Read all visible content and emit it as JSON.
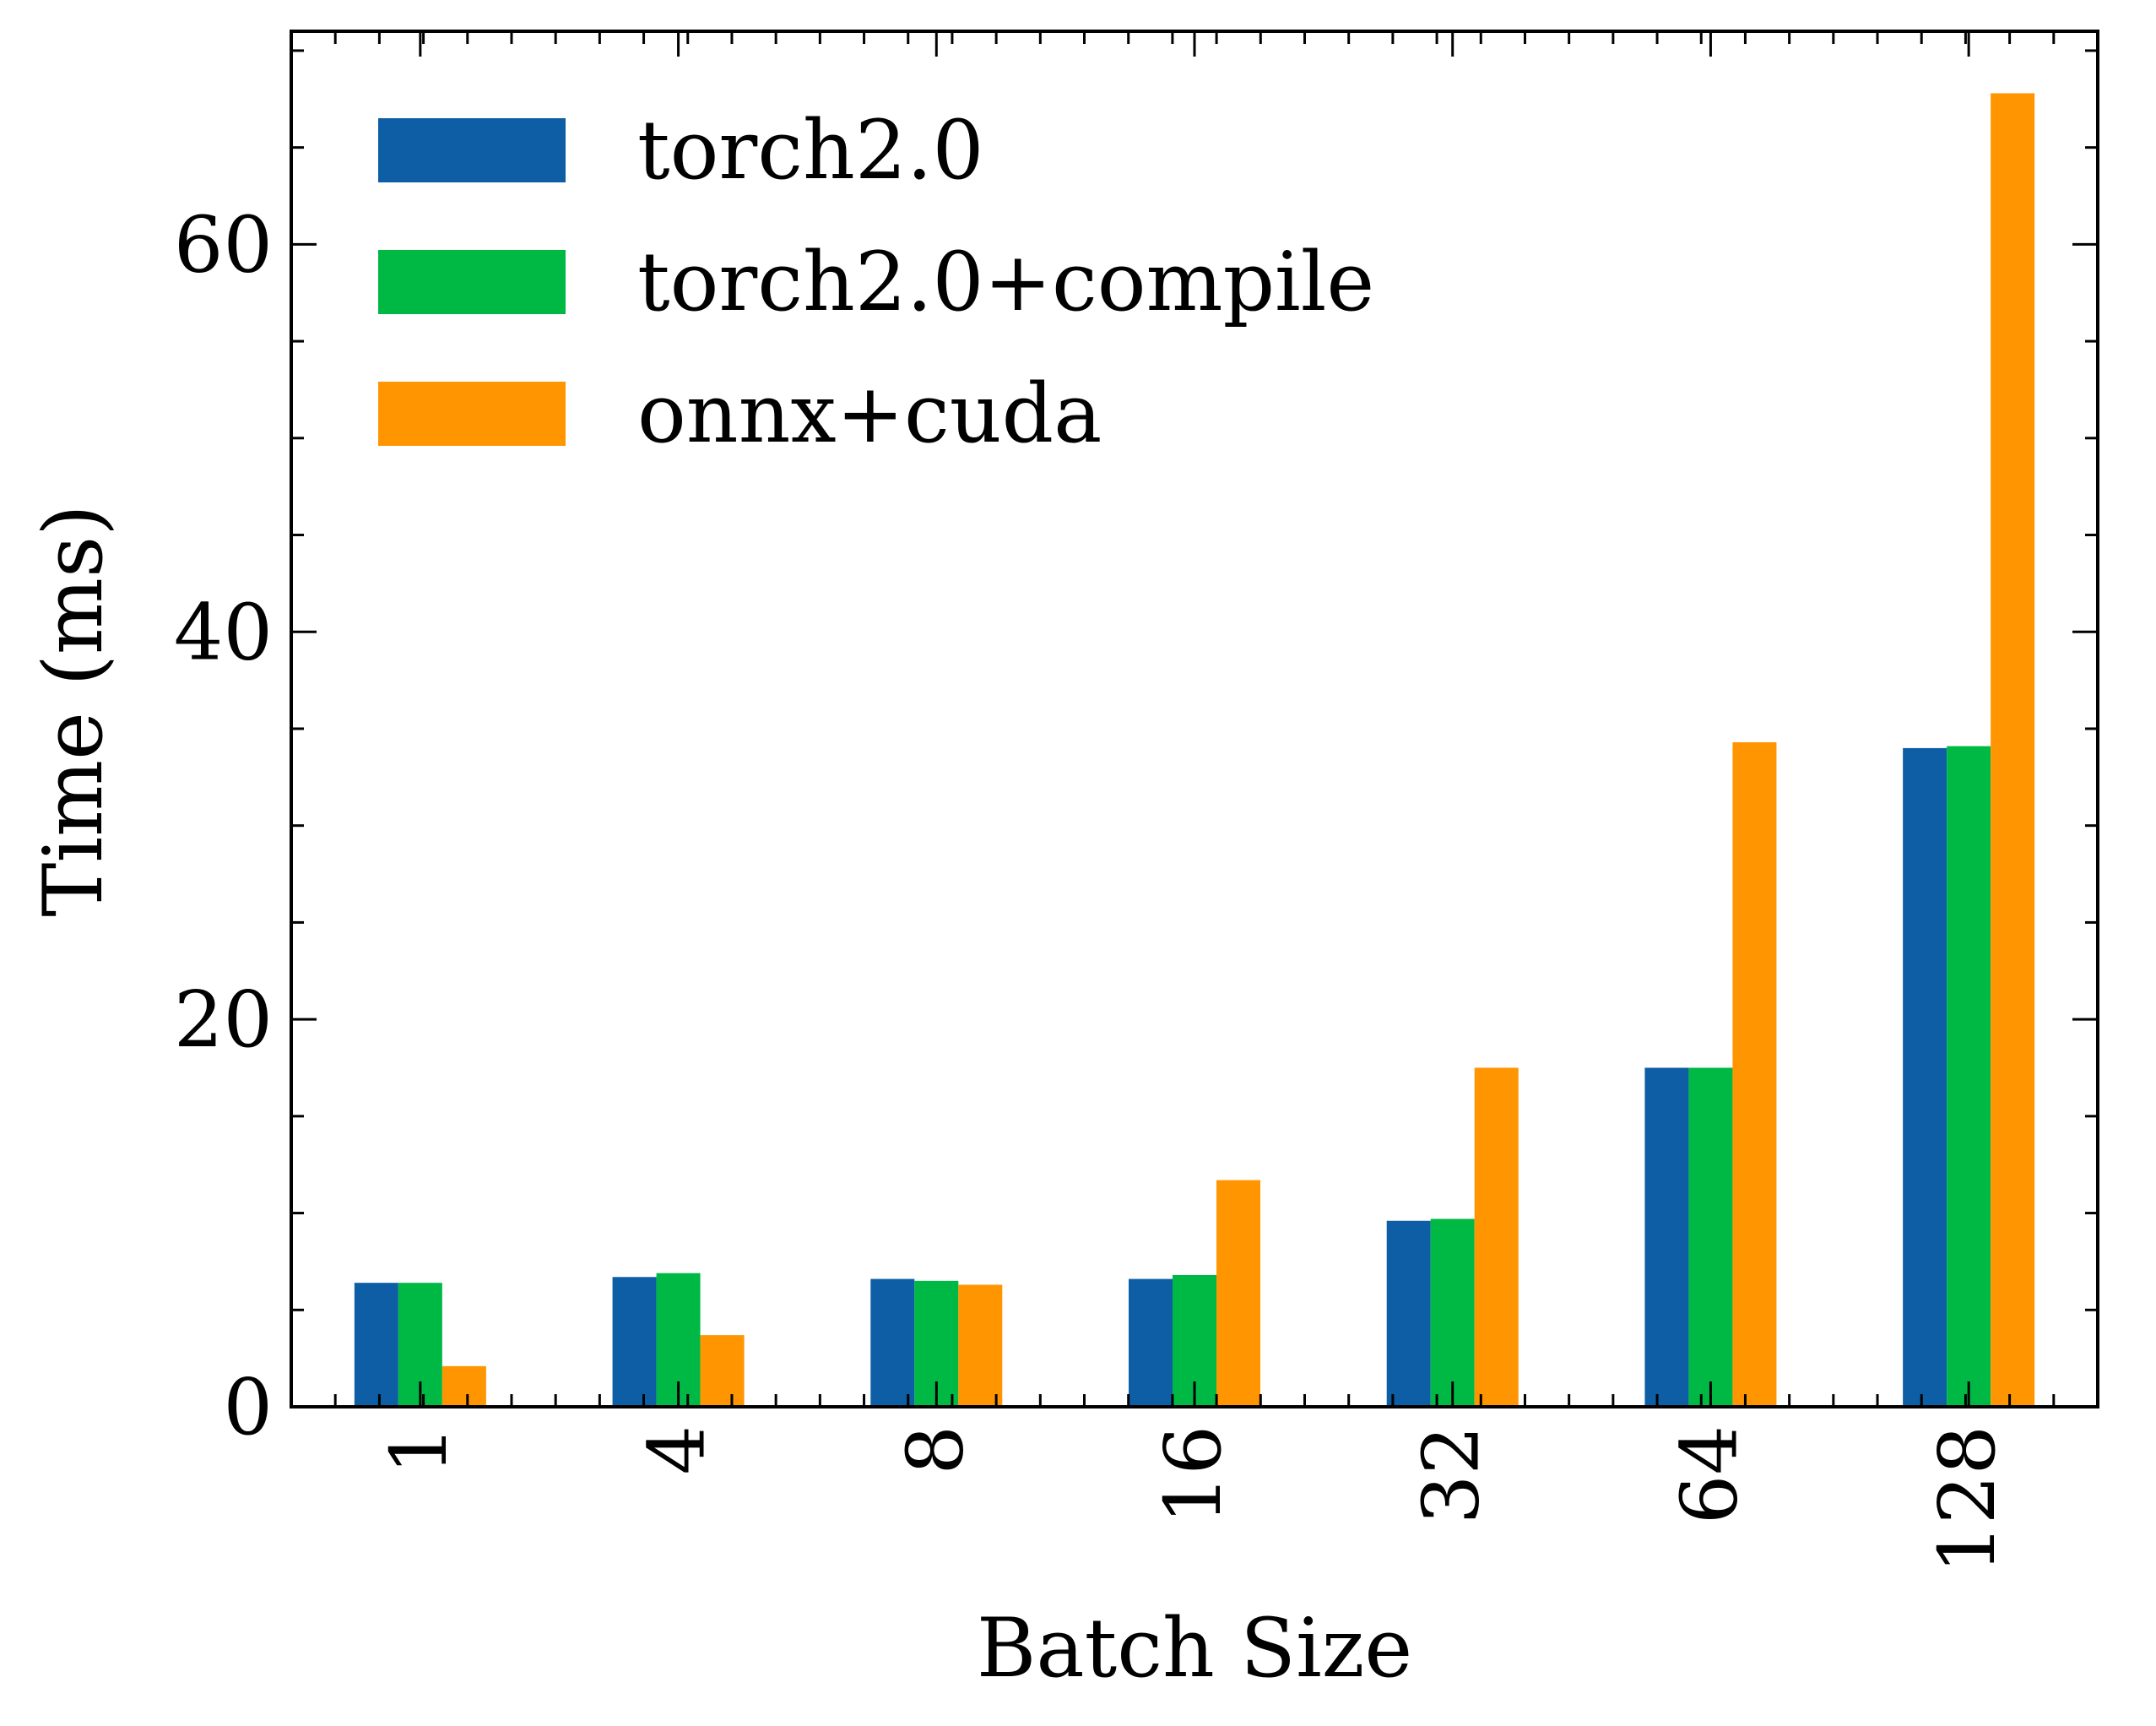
{
  "chart_data": {
    "type": "bar",
    "xlabel": "Batch Size",
    "ylabel": "Time (ms)",
    "categories": [
      "1",
      "4",
      "8",
      "16",
      "32",
      "64",
      "128"
    ],
    "ylim": [
      0,
      71
    ],
    "yticks": [
      0,
      20,
      40,
      60
    ],
    "legend_position": "top-left",
    "grid": false,
    "series": [
      {
        "name": "torch2.0",
        "color": "#0e5ea6",
        "values": [
          6.4,
          6.7,
          6.6,
          6.6,
          9.6,
          17.5,
          34.0
        ]
      },
      {
        "name": "torch2.0+compile",
        "color": "#00b945",
        "values": [
          6.4,
          6.9,
          6.5,
          6.8,
          9.7,
          17.5,
          34.1
        ]
      },
      {
        "name": "onnx+cuda",
        "color": "#ff9500",
        "values": [
          2.1,
          3.7,
          6.3,
          11.7,
          17.5,
          34.3,
          67.8
        ]
      }
    ]
  }
}
